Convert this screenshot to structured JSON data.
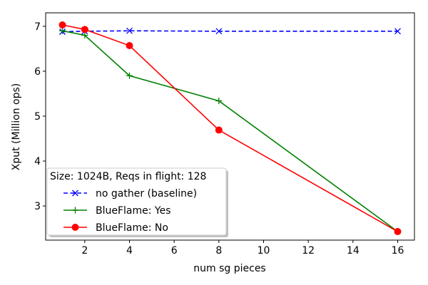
{
  "chart_data": {
    "type": "line",
    "xlabel": "num sg pieces",
    "ylabel": "Xput (Million ops)",
    "xlim": [
      0.25,
      16.75
    ],
    "ylim": [
      2.24,
      7.3
    ],
    "xticks": [
      2,
      4,
      6,
      8,
      10,
      12,
      14,
      16
    ],
    "yticks": [
      3,
      4,
      5,
      6,
      7
    ],
    "grid": false,
    "legend_placement": "lower-left",
    "legend_title": "Size: 1024B, Reqs in flight: 128",
    "series": [
      {
        "name": "no gather (baseline)",
        "color": "#0000ff",
        "linestyle": "dashed",
        "marker": "x",
        "x": [
          1,
          2,
          4,
          8,
          16
        ],
        "y": [
          6.88,
          6.89,
          6.9,
          6.89,
          6.89
        ]
      },
      {
        "name": "BlueFlame: Yes",
        "color": "#008000",
        "linestyle": "solid",
        "marker": "plus",
        "x": [
          1,
          2,
          4,
          8,
          16
        ],
        "y": [
          6.9,
          6.8,
          5.9,
          5.34,
          2.43
        ]
      },
      {
        "name": "BlueFlame: No",
        "color": "#ff0000",
        "linestyle": "solid",
        "marker": "circle",
        "x": [
          1,
          2,
          4,
          8,
          16
        ],
        "y": [
          7.03,
          6.93,
          6.57,
          4.69,
          2.43
        ]
      }
    ]
  }
}
